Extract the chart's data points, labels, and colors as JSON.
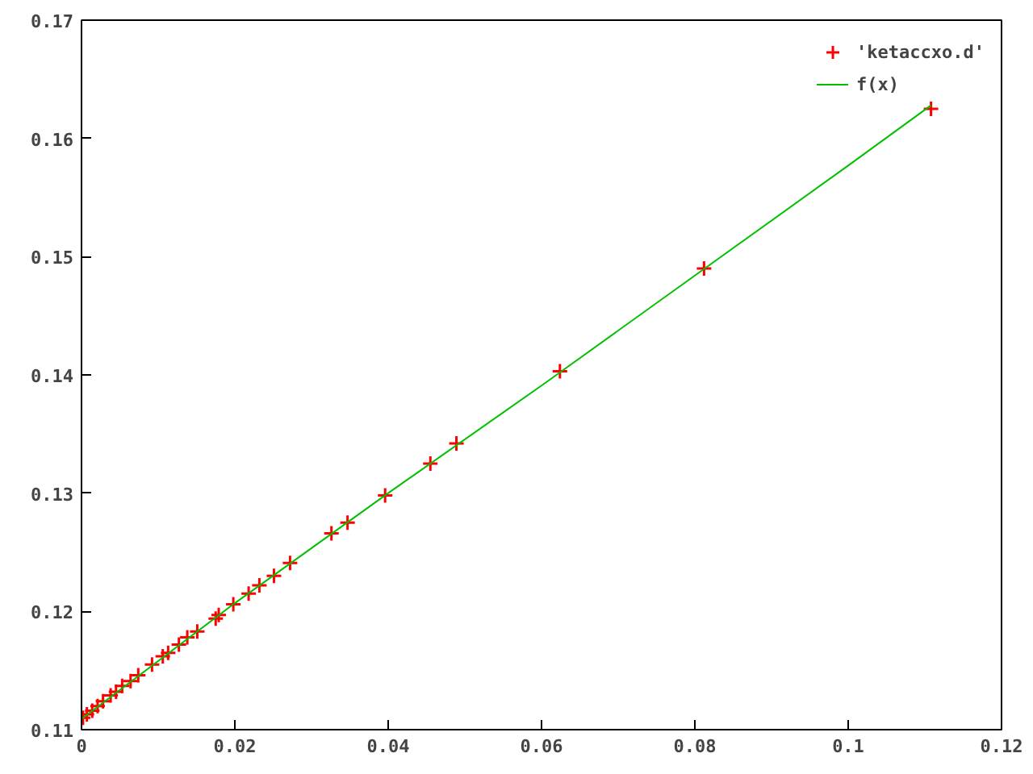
{
  "chart_data": {
    "type": "scatter",
    "xlim": [
      0,
      0.12
    ],
    "ylim": [
      0.11,
      0.17
    ],
    "xticks": [
      0,
      0.02,
      0.04,
      0.06,
      0.08,
      0.1,
      0.12
    ],
    "yticks": [
      0.11,
      0.12,
      0.13,
      0.14,
      0.15,
      0.16,
      0.17
    ],
    "grid": false,
    "legend": "top right",
    "series": [
      {
        "name": "'ketaccxo.d'",
        "marker": "cross",
        "color": "#ff0000",
        "x": [
          0.0002,
          0.0007,
          0.0014,
          0.0021,
          0.0028,
          0.0038,
          0.0045,
          0.0053,
          0.0064,
          0.0074,
          0.0092,
          0.0106,
          0.0113,
          0.0127,
          0.0138,
          0.0151,
          0.0175,
          0.0179,
          0.0198,
          0.0218,
          0.0232,
          0.0251,
          0.0272,
          0.0326,
          0.0347,
          0.0396,
          0.0455,
          0.0489,
          0.0624,
          0.0812,
          0.1108
        ],
        "values": [
          0.111,
          0.1113,
          0.1116,
          0.112,
          0.1124,
          0.1129,
          0.1132,
          0.1137,
          0.1141,
          0.1146,
          0.1155,
          0.1162,
          0.1165,
          0.1172,
          0.1178,
          0.1183,
          0.1194,
          0.1197,
          0.1206,
          0.1215,
          0.1222,
          0.123,
          0.1241,
          0.1266,
          0.1275,
          0.1298,
          0.1325,
          0.1342,
          0.1403,
          0.149,
          0.1625
        ]
      },
      {
        "name": "f(x)",
        "type": "line",
        "color": "#00c000",
        "x": [
          0,
          0.02,
          0.04,
          0.06,
          0.08,
          0.1,
          0.1108
        ],
        "values": [
          0.1109,
          0.1207,
          0.13,
          0.1391,
          0.1484,
          0.1577,
          0.1628
        ]
      }
    ]
  }
}
